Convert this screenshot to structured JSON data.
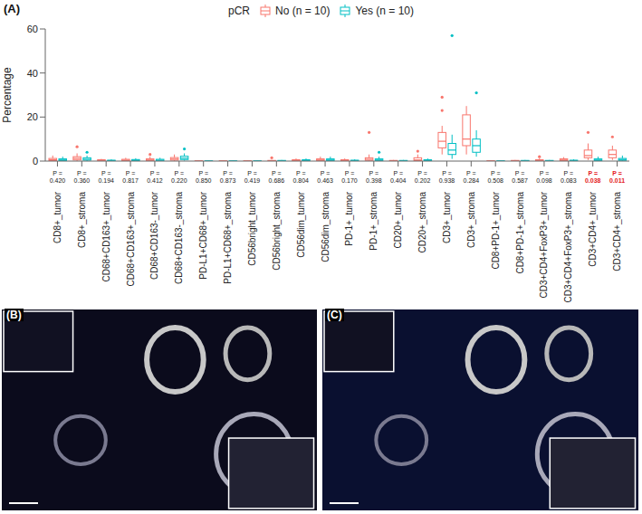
{
  "panel_labels": [
    "(A)",
    "(B)",
    "(C)"
  ],
  "chart_data": {
    "type": "box",
    "y_label": "Percentage",
    "legend_title": "pCR",
    "legend": "top",
    "grid": false,
    "ylim": [
      0,
      60
    ],
    "yticks": [
      0,
      20,
      40,
      60
    ],
    "categories": [
      "CD8+_tumor",
      "CD8+_stroma",
      "CD68+CD163+_tumor",
      "CD68+CD163+_stroma",
      "CD68+CD163-_tumor",
      "CD68+CD163-_stroma",
      "PD-L1+CD68+_tumor",
      "PD-L1+CD68+_stroma",
      "CD56bright_tumor",
      "CD56bright_stroma",
      "CD56dim_tumor",
      "CD56dim_stroma",
      "PD-1+_tumor",
      "PD-1+_stroma",
      "CD20+_tumor",
      "CD20+_stroma",
      "CD3+_tumor",
      "CD3+_stroma",
      "CD8+PD-1+_tumor",
      "CD8+PD-1+_stroma",
      "CD3+CD4+FoxP3+_tumor",
      "CD3+CD4+FoxP3+_stroma",
      "CD3+CD4+_tumor",
      "CD3+CD4+_stroma"
    ],
    "p_values": [
      {
        "value": 0.42,
        "label": "P = 0.420"
      },
      {
        "value": 0.36,
        "label": "P = 0.360"
      },
      {
        "value": 0.194,
        "label": "P = 0.194"
      },
      {
        "value": 0.817,
        "label": "P = 0.817"
      },
      {
        "value": 0.412,
        "label": "P = 0.412"
      },
      {
        "value": 0.22,
        "label": "P = 0.220"
      },
      {
        "value": 0.85,
        "label": "P = 0.850"
      },
      {
        "value": 0.873,
        "label": "P = 0.873"
      },
      {
        "value": 0.419,
        "label": "P = 0.419"
      },
      {
        "value": 0.686,
        "label": "P = 0.686"
      },
      {
        "value": 0.804,
        "label": "P = 0.804"
      },
      {
        "value": 0.463,
        "label": "P = 0.463"
      },
      {
        "value": 0.17,
        "label": "P = 0.170"
      },
      {
        "value": 0.398,
        "label": "P = 0.398"
      },
      {
        "value": 0.404,
        "label": "P = 0.404"
      },
      {
        "value": 0.202,
        "label": "P = 0.202"
      },
      {
        "value": 0.938,
        "label": "P = 0.938"
      },
      {
        "value": 0.284,
        "label": "P = 0.284"
      },
      {
        "value": 0.508,
        "label": "P = 0.508"
      },
      {
        "value": 0.587,
        "label": "P = 0.587"
      },
      {
        "value": 0.098,
        "label": "P = 0.098"
      },
      {
        "value": 0.083,
        "label": "P = 0.083"
      },
      {
        "value": 0.038,
        "label": "P = 0.038"
      },
      {
        "value": 0.011,
        "label": "P = 0.011"
      }
    ],
    "p_value_colors": [
      "#222222",
      "#222222",
      "#222222",
      "#222222",
      "#222222",
      "#222222",
      "#222222",
      "#222222",
      "#222222",
      "#222222",
      "#222222",
      "#222222",
      "#222222",
      "#222222",
      "#222222",
      "#222222",
      "#222222",
      "#222222",
      "#222222",
      "#222222",
      "#222222",
      "#222222",
      "#e41a1c",
      "#e41a1c"
    ],
    "series": [
      {
        "name": "No (n = 10)",
        "color": "#F8766D",
        "min": [
          0,
          0,
          0,
          0,
          0,
          0,
          0,
          0,
          0,
          0,
          0,
          0,
          0,
          0,
          0,
          0,
          3,
          3,
          0,
          0,
          0,
          0,
          0.5,
          0.5
        ],
        "q1": [
          0.2,
          0.5,
          0.1,
          0.2,
          0.2,
          0.4,
          0.02,
          0.02,
          0.02,
          0.05,
          0.1,
          0.2,
          0.1,
          0.3,
          0.05,
          0.2,
          6,
          7,
          0.02,
          0.05,
          0.1,
          0.2,
          1.5,
          1.5
        ],
        "median": [
          0.6,
          1.2,
          0.3,
          0.4,
          0.5,
          0.9,
          0.05,
          0.05,
          0.05,
          0.1,
          0.3,
          0.5,
          0.3,
          0.8,
          0.1,
          0.5,
          9,
          10,
          0.05,
          0.1,
          0.3,
          0.5,
          2.5,
          3
        ],
        "q3": [
          1.2,
          2,
          0.6,
          0.8,
          1,
          1.6,
          0.1,
          0.1,
          0.1,
          0.3,
          0.6,
          1,
          0.6,
          1.5,
          0.3,
          1.5,
          13,
          21,
          0.1,
          0.3,
          0.6,
          1,
          5,
          5
        ],
        "max": [
          2.5,
          3.5,
          1,
          1.5,
          2,
          3,
          0.2,
          0.2,
          0.2,
          0.5,
          1.2,
          2,
          1.2,
          3,
          0.5,
          3,
          16,
          25,
          0.2,
          0.5,
          1.2,
          1.8,
          8,
          7
        ],
        "outliers": [
          [],
          [
            6.5
          ],
          [],
          [],
          [
            3
          ],
          [],
          [],
          [],
          [],
          [
            1.5
          ],
          [],
          [],
          [],
          [
            13
          ],
          [],
          [
            4.5
          ],
          [
            23,
            29
          ],
          [],
          [],
          [],
          [
            2
          ],
          [],
          [
            13
          ],
          [
            11
          ]
        ]
      },
      {
        "name": "Yes (n = 10)",
        "color": "#00BFC4",
        "min": [
          0,
          0,
          0,
          0,
          0,
          0.2,
          0,
          0,
          0,
          0,
          0,
          0,
          0,
          0,
          0,
          0,
          1,
          2,
          0,
          0,
          0,
          0,
          0,
          0
        ],
        "q1": [
          0.2,
          0.4,
          0.05,
          0.2,
          0.1,
          0.7,
          0.02,
          0.02,
          0.02,
          0.05,
          0.1,
          0.2,
          0.1,
          0.2,
          0.05,
          0.1,
          3,
          4,
          0.02,
          0.05,
          0.05,
          0.05,
          0.2,
          0.3
        ],
        "median": [
          0.5,
          0.8,
          0.2,
          0.4,
          0.4,
          1.3,
          0.05,
          0.05,
          0.05,
          0.1,
          0.3,
          0.5,
          0.2,
          0.5,
          0.1,
          0.3,
          5,
          7,
          0.05,
          0.1,
          0.1,
          0.2,
          0.5,
          0.7
        ],
        "q3": [
          1,
          1.5,
          0.4,
          0.7,
          0.8,
          2.2,
          0.1,
          0.1,
          0.1,
          0.3,
          0.6,
          1,
          0.4,
          1,
          0.3,
          0.6,
          8,
          10,
          0.1,
          0.3,
          0.3,
          0.4,
          1,
          1.2
        ],
        "max": [
          2,
          2.5,
          0.8,
          1.3,
          1.5,
          3.5,
          0.2,
          0.2,
          0.2,
          0.5,
          1.2,
          2,
          0.8,
          2,
          0.5,
          1.2,
          12,
          14,
          0.2,
          0.5,
          0.5,
          0.8,
          2,
          2.5
        ],
        "outliers": [
          [],
          [
            4
          ],
          [],
          [],
          [],
          [
            5.5
          ],
          [],
          [],
          [],
          [],
          [],
          [],
          [],
          [
            4
          ],
          [],
          [],
          [
            57
          ],
          [
            31
          ],
          [],
          [],
          [],
          [],
          [],
          []
        ]
      }
    ]
  }
}
